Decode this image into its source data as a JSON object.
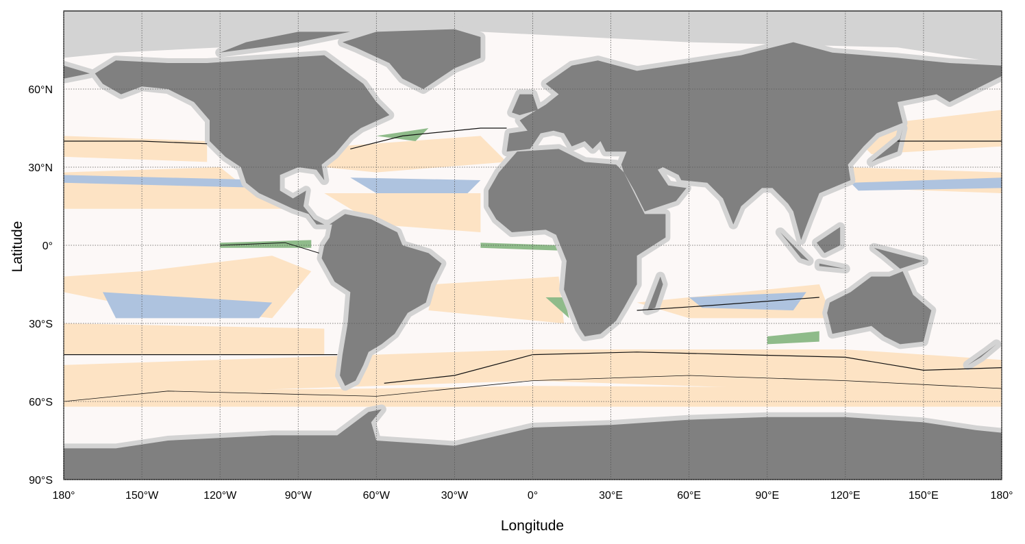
{
  "chart_data": {
    "type": "map",
    "xlabel": "Longitude",
    "ylabel": "Latitude",
    "xlim": [
      -180,
      180
    ],
    "ylim": [
      -90,
      90
    ],
    "xticks": [
      {
        "value": -180,
        "label": "180°"
      },
      {
        "value": -150,
        "label": "150°W"
      },
      {
        "value": -120,
        "label": "120°W"
      },
      {
        "value": -90,
        "label": "90°W"
      },
      {
        "value": -60,
        "label": "60°W"
      },
      {
        "value": -30,
        "label": "30°W"
      },
      {
        "value": 0,
        "label": "0°"
      },
      {
        "value": 30,
        "label": "30°E"
      },
      {
        "value": 60,
        "label": "60°E"
      },
      {
        "value": 90,
        "label": "90°E"
      },
      {
        "value": 120,
        "label": "120°E"
      },
      {
        "value": 150,
        "label": "150°E"
      },
      {
        "value": 180,
        "label": "180°"
      }
    ],
    "yticks": [
      {
        "value": -90,
        "label": "90°S"
      },
      {
        "value": -60,
        "label": "60°S"
      },
      {
        "value": -30,
        "label": "30°S"
      },
      {
        "value": 0,
        "label": "0°"
      },
      {
        "value": 30,
        "label": "30°N"
      },
      {
        "value": 60,
        "label": "60°N"
      }
    ],
    "grid": true
  }
}
